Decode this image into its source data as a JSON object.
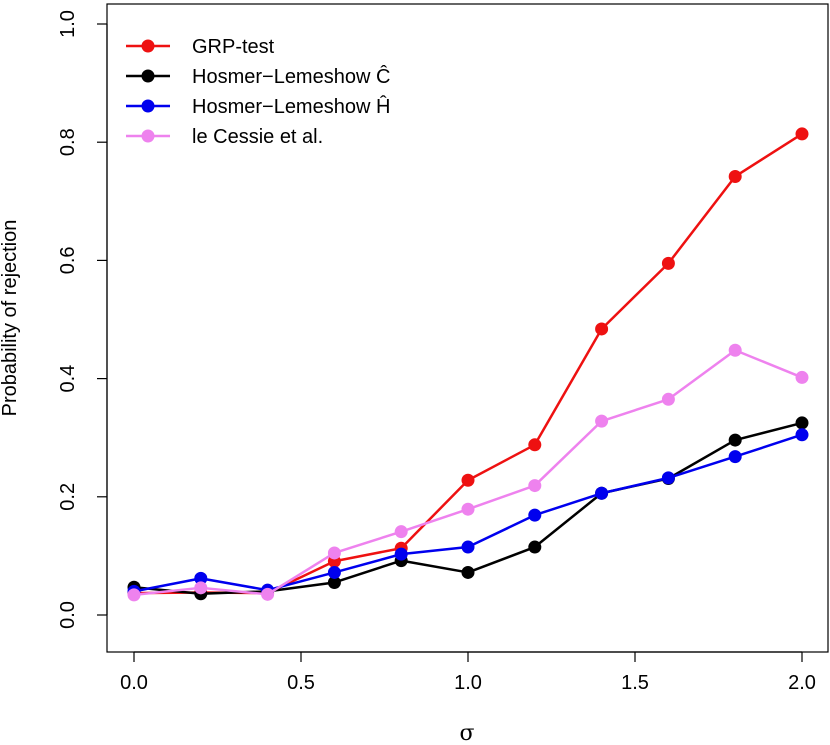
{
  "chart_data": {
    "type": "line",
    "title": "",
    "xlabel": "σ",
    "ylabel": "Probability of rejection",
    "xlim": [
      0.0,
      2.0
    ],
    "ylim": [
      0.0,
      1.0
    ],
    "xticks": [
      0.0,
      0.5,
      1.0,
      1.5,
      2.0
    ],
    "xtick_labels": [
      "0.0",
      "0.5",
      "1.0",
      "1.5",
      "2.0"
    ],
    "yticks": [
      0.0,
      0.2,
      0.4,
      0.6,
      0.8,
      1.0
    ],
    "ytick_labels": [
      "0.0",
      "0.2",
      "0.4",
      "0.6",
      "0.8",
      "1.0"
    ],
    "grid": false,
    "legend_position": "top-left",
    "x": [
      0.0,
      0.2,
      0.4,
      0.6,
      0.8,
      1.0,
      1.2,
      1.4,
      1.6,
      1.8,
      2.0
    ],
    "series": [
      {
        "name": "GRP-test",
        "color": "#ee1111",
        "values": [
          0.037,
          0.038,
          0.037,
          0.091,
          0.113,
          0.228,
          0.288,
          0.484,
          0.595,
          0.742,
          0.814
        ]
      },
      {
        "name": "Hosmer−Lemeshow Ĉ",
        "color": "#000000",
        "values": [
          0.047,
          0.036,
          0.04,
          0.055,
          0.092,
          0.072,
          0.115,
          0.206,
          0.231,
          0.296,
          0.325
        ]
      },
      {
        "name": "Hosmer−Lemeshow Ĥ",
        "color": "#0000ee",
        "values": [
          0.04,
          0.062,
          0.042,
          0.072,
          0.103,
          0.115,
          0.169,
          0.206,
          0.232,
          0.268,
          0.305
        ]
      },
      {
        "name": "le Cessie et al.",
        "color": "#ee82ee",
        "values": [
          0.034,
          0.046,
          0.035,
          0.105,
          0.141,
          0.179,
          0.219,
          0.328,
          0.365,
          0.448,
          0.402
        ]
      }
    ]
  }
}
